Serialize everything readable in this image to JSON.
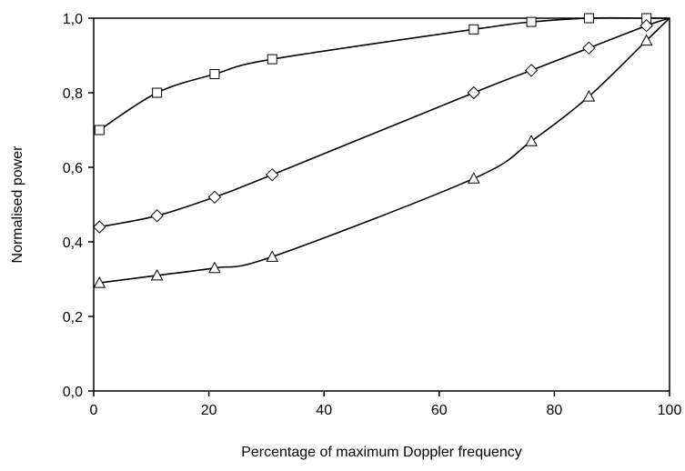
{
  "chart_data": {
    "type": "line",
    "xlabel": "Percentage of maximum Doppler frequency",
    "ylabel": "Normalised power",
    "xlim": [
      0,
      100
    ],
    "ylim": [
      0,
      1
    ],
    "x_ticks": [
      "0",
      "20",
      "40",
      "60",
      "80",
      "100"
    ],
    "y_ticks": [
      "0,0",
      "0,2",
      "0,4",
      "0,6",
      "0,8",
      "1,0"
    ],
    "grid": false,
    "legend": "none",
    "series": [
      {
        "marker": "square",
        "x": [
          1,
          11,
          21,
          31,
          66,
          76,
          86,
          96
        ],
        "y": [
          0.7,
          0.8,
          0.85,
          0.89,
          0.97,
          0.99,
          1.0,
          1.0
        ]
      },
      {
        "marker": "diamond",
        "x": [
          1,
          11,
          21,
          31,
          66,
          76,
          86,
          96
        ],
        "y": [
          0.44,
          0.47,
          0.52,
          0.58,
          0.8,
          0.86,
          0.92,
          0.98
        ]
      },
      {
        "marker": "triangle",
        "x": [
          1,
          11,
          21,
          31,
          66,
          76,
          86,
          96
        ],
        "y": [
          0.29,
          0.31,
          0.33,
          0.36,
          0.57,
          0.67,
          0.79,
          0.94
        ]
      }
    ],
    "curves_end_at": [
      100,
      1.0
    ]
  }
}
